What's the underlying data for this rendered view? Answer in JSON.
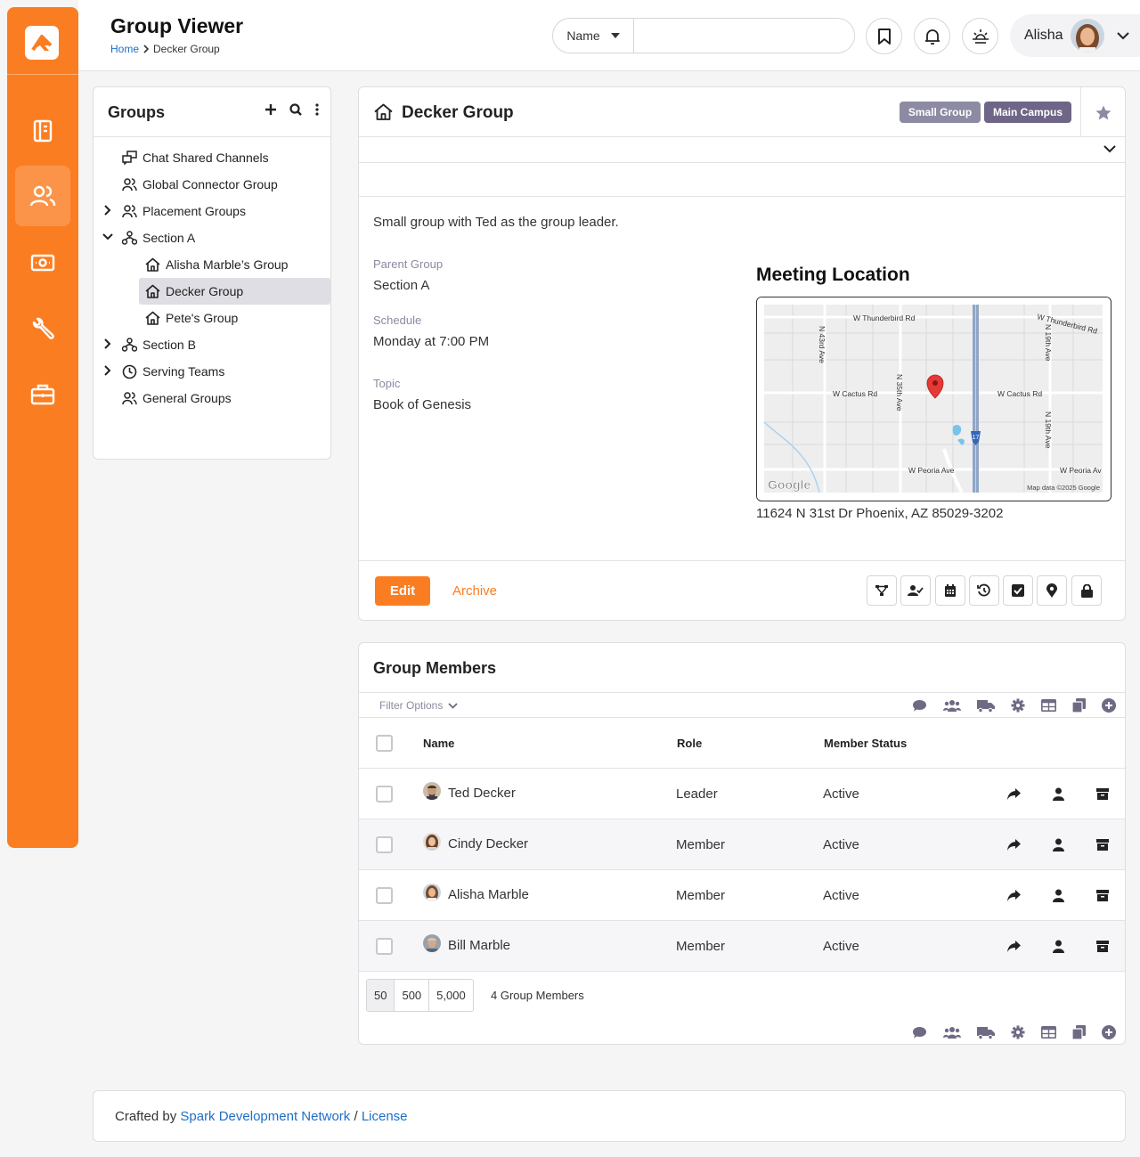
{
  "header": {
    "title": "Group Viewer",
    "breadcrumb": {
      "home": "Home",
      "current": "Decker Group"
    },
    "search": {
      "type_label": "Name",
      "placeholder": ""
    },
    "user": {
      "name": "Alisha"
    }
  },
  "sidebar": {
    "items": [
      "book-icon",
      "people-icon",
      "finance-icon",
      "tools-icon",
      "briefcase-icon"
    ],
    "active_index": 1
  },
  "tree": {
    "title": "Groups",
    "items": [
      {
        "label": "Chat Shared Channels",
        "icon": "chat-channels-icon",
        "level": 0,
        "expand": "none"
      },
      {
        "label": "Global Connector Group",
        "icon": "people-icon",
        "level": 0,
        "expand": "none"
      },
      {
        "label": "Placement Groups",
        "icon": "people-icon",
        "level": 0,
        "expand": "collapsed"
      },
      {
        "label": "Section A",
        "icon": "sitemap-icon",
        "level": 0,
        "expand": "expanded"
      },
      {
        "label": "Alisha Marble’s Group",
        "icon": "home-icon",
        "level": 1,
        "expand": "none"
      },
      {
        "label": "Decker Group",
        "icon": "home-icon",
        "level": 1,
        "expand": "none",
        "selected": true
      },
      {
        "label": "Pete's Group",
        "icon": "home-icon",
        "level": 1,
        "expand": "none"
      },
      {
        "label": "Section B",
        "icon": "sitemap-icon",
        "level": 0,
        "expand": "collapsed"
      },
      {
        "label": "Serving Teams",
        "icon": "clock-icon",
        "level": 0,
        "expand": "collapsed"
      },
      {
        "label": "General Groups",
        "icon": "people-icon",
        "level": 0,
        "expand": "none"
      }
    ]
  },
  "group": {
    "name": "Decker Group",
    "badges": [
      {
        "label": "Small Group",
        "color": "#8d8aa3"
      },
      {
        "label": "Main Campus",
        "color": "#6f6587"
      }
    ],
    "description": "Small group with Ted as the group leader.",
    "attributes": [
      {
        "label": "Parent Group",
        "value": "Section A"
      },
      {
        "label": "Schedule",
        "value": "Monday at 7:00 PM"
      },
      {
        "label": "Topic",
        "value": "Book of Genesis"
      }
    ],
    "map": {
      "title": "Meeting Location",
      "address": "11624 N 31st Dr Phoenix, AZ 85029-3202",
      "labels": {
        "thunderbird_left": "W Thunderbird Rd",
        "thunderbird_right": "W Thunderbird Rd",
        "cactus_left": "W Cactus Rd",
        "cactus_right": "W Cactus Rd",
        "peoria_left": "W Peoria Ave",
        "peoria_right": "W Peoria Av",
        "ave_43rd": "N 43rd Ave",
        "ave_35th": "N 35th Ave",
        "ave_19th_top": "N 19th Ave",
        "ave_19th_mid": "N 19th Ave",
        "interstate": "17",
        "google": "Google",
        "map_data": "Map data ©2025 Google"
      }
    },
    "actions": {
      "edit": "Edit",
      "archive": "Archive"
    },
    "tool_icons": [
      "sitemap-icon",
      "user-check-icon",
      "calendar-icon",
      "history-icon",
      "check-square-icon",
      "map-marker-icon",
      "lock-icon"
    ]
  },
  "members": {
    "title": "Group Members",
    "filter_label": "Filter Options",
    "columns": {
      "name": "Name",
      "role": "Role",
      "status": "Member Status"
    },
    "rows": [
      {
        "name": "Ted Decker",
        "role": "Leader",
        "status": "Active"
      },
      {
        "name": "Cindy Decker",
        "role": "Member",
        "status": "Active"
      },
      {
        "name": "Alisha Marble",
        "role": "Member",
        "status": "Active"
      },
      {
        "name": "Bill Marble",
        "role": "Member",
        "status": "Active"
      }
    ],
    "page_sizes": [
      "50",
      "500",
      "5,000"
    ],
    "count": "4 Group Members",
    "toolbar_icons": [
      "comment-icon",
      "users-icon",
      "truck-icon",
      "cog-icon",
      "table-icon",
      "copy-icon",
      "plus-circle-icon"
    ]
  },
  "footer": {
    "prefix": "Crafted by",
    "link1": "Spark Development Network",
    "sep": "/",
    "link2": "License"
  },
  "colors": {
    "accent": "#fb7d22",
    "link": "#1f6ec8",
    "badge_small_group": "#8d8aa3",
    "badge_campus": "#6f6587"
  }
}
